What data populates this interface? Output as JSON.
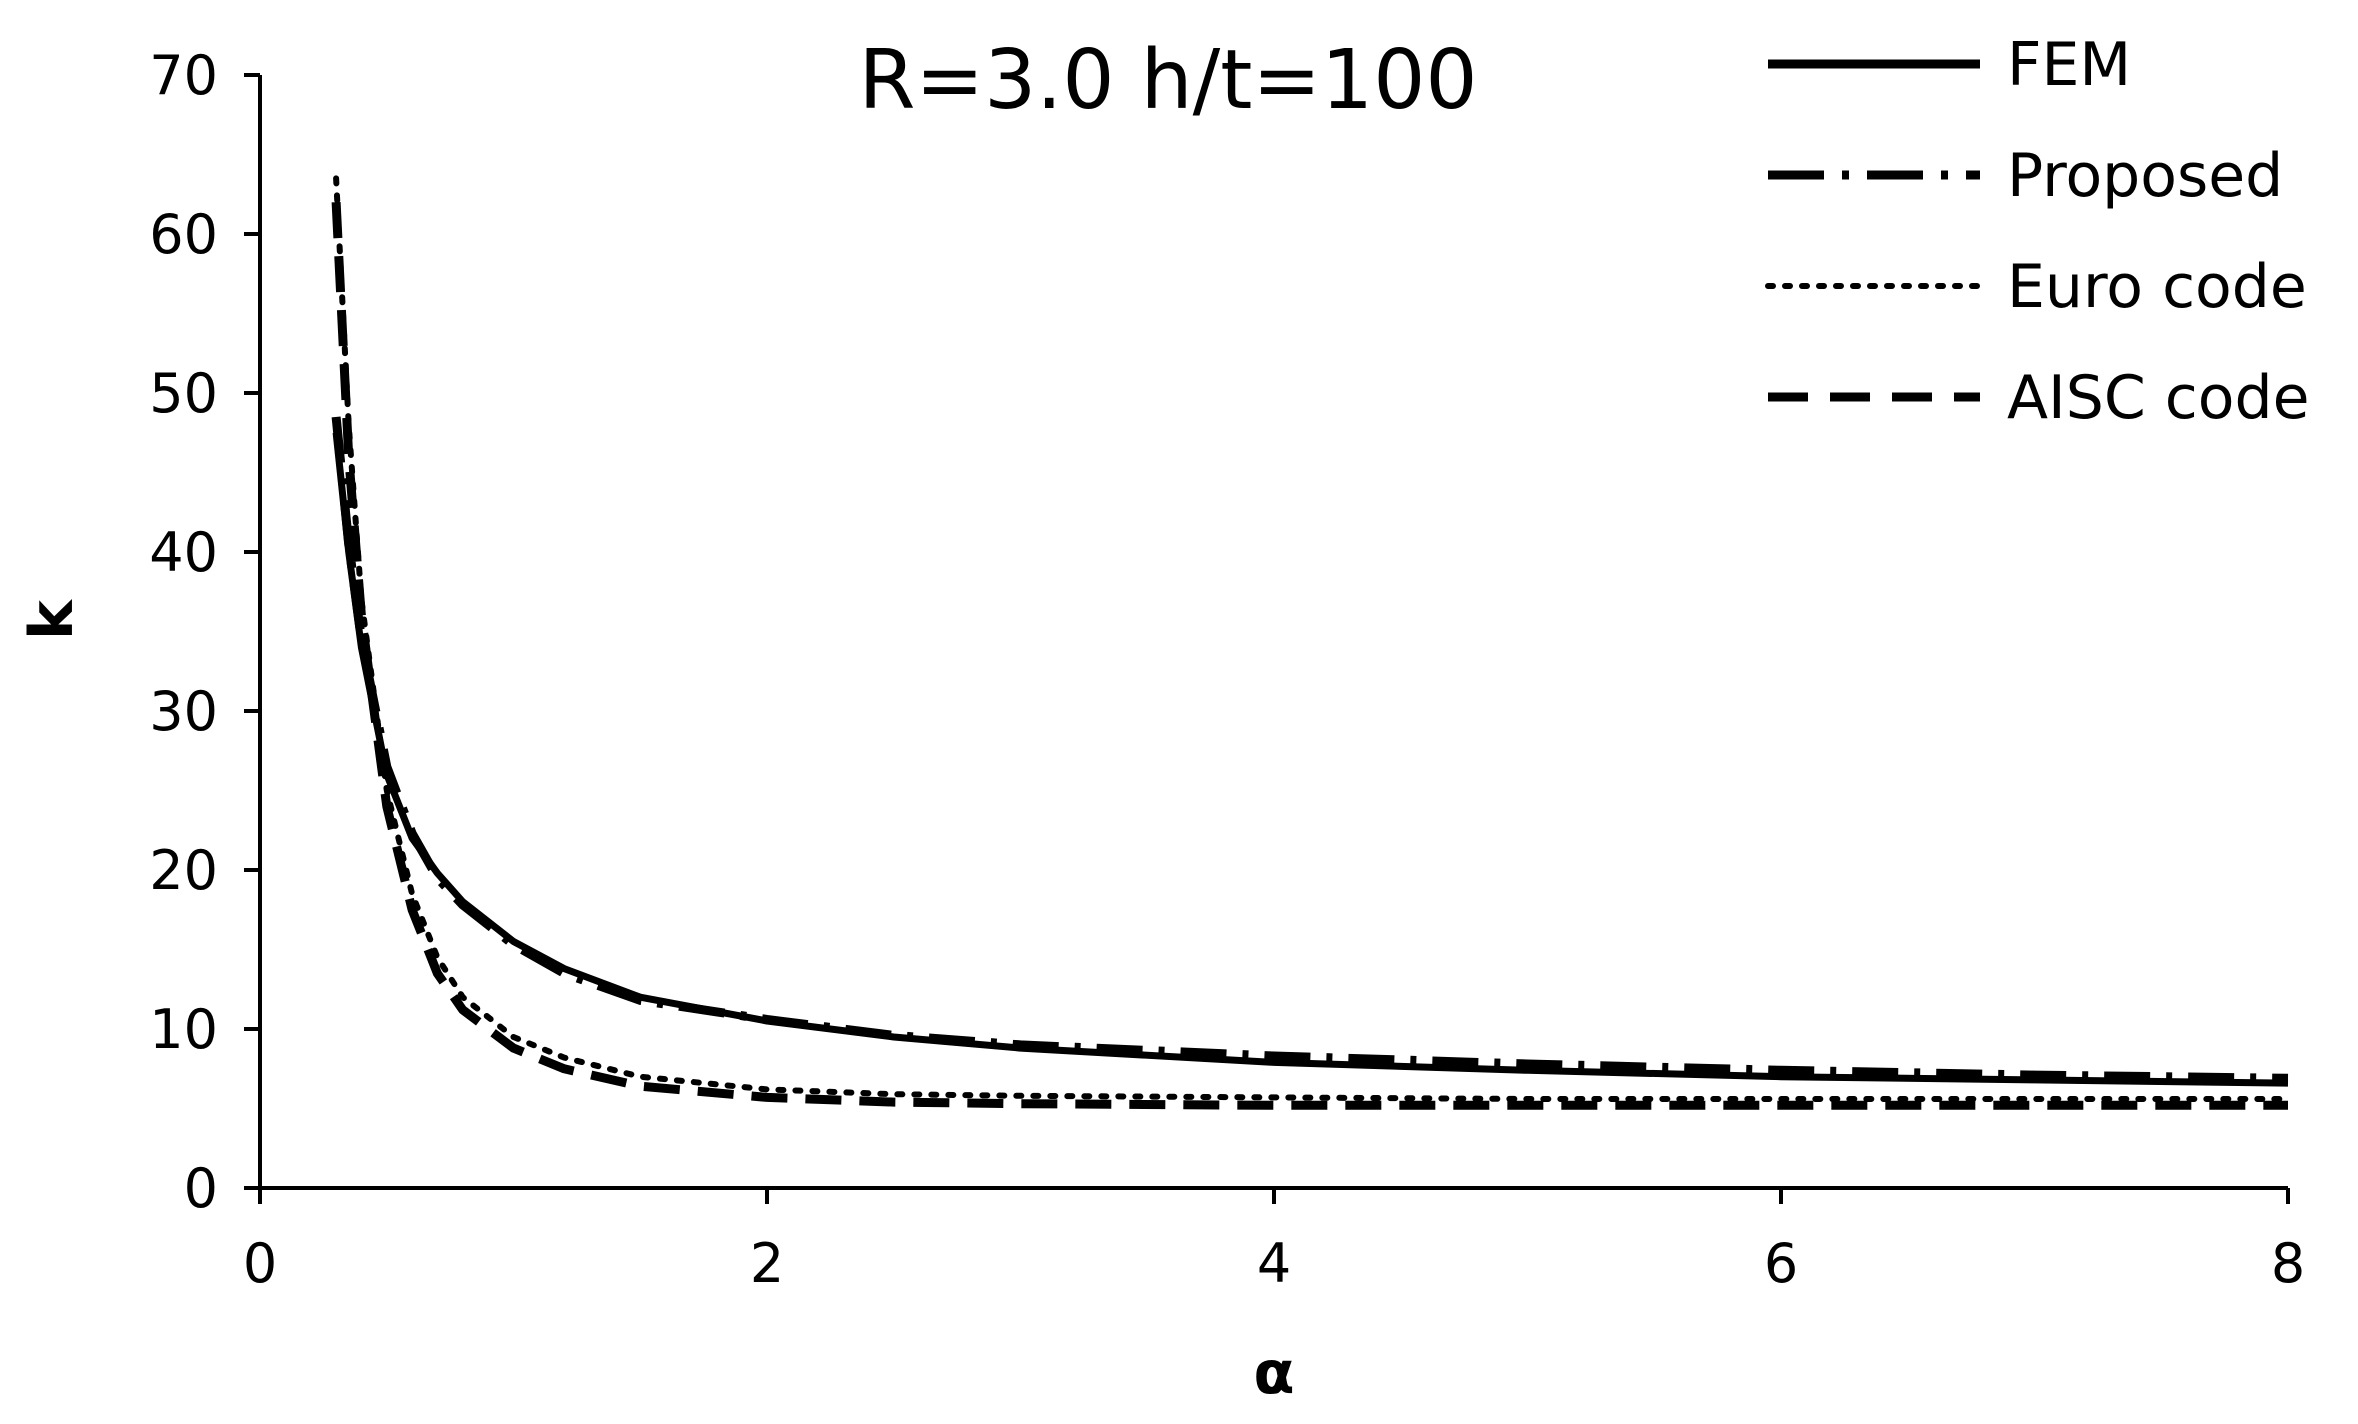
{
  "chart_data": {
    "type": "line",
    "title": "R=3.0 h/t=100",
    "xlabel": "α",
    "ylabel": "k",
    "xlim": [
      0,
      8
    ],
    "ylim": [
      0,
      70
    ],
    "x_ticks": [
      "0",
      "2",
      "4",
      "6",
      "8"
    ],
    "y_ticks": [
      "0",
      "10",
      "20",
      "30",
      "40",
      "50",
      "60",
      "70"
    ],
    "grid": false,
    "legend_position": "top-right",
    "series": [
      {
        "name": "FEM",
        "style": "solid",
        "x": [
          0.3,
          0.35,
          0.4,
          0.5,
          0.6,
          0.7,
          0.8,
          1.0,
          1.2,
          1.5,
          2.0,
          2.5,
          3.0,
          4.0,
          5.0,
          6.0,
          7.0,
          8.0
        ],
        "y": [
          47.5,
          40,
          34,
          26,
          22,
          19.8,
          18,
          15.5,
          13.8,
          12,
          10.5,
          9.5,
          8.8,
          7.9,
          7.4,
          7.0,
          6.8,
          6.6
        ]
      },
      {
        "name": "Proposed",
        "style": "dash-dot",
        "x": [
          0.3,
          0.35,
          0.4,
          0.5,
          0.6,
          0.7,
          0.8,
          1.0,
          1.2,
          1.5,
          2.0,
          2.5,
          3.0,
          4.0,
          5.0,
          6.0,
          7.0,
          8.0
        ],
        "y": [
          48.5,
          40.5,
          34.5,
          26.5,
          22.3,
          19.5,
          17.8,
          15.3,
          13.5,
          11.8,
          10.6,
          9.6,
          9.0,
          8.3,
          7.8,
          7.4,
          7.1,
          6.9
        ]
      },
      {
        "name": "Euro code",
        "style": "dotted",
        "x": [
          0.3,
          0.35,
          0.4,
          0.5,
          0.6,
          0.7,
          0.8,
          1.0,
          1.2,
          1.5,
          2.0,
          2.5,
          3.0,
          4.0,
          5.0,
          6.0,
          7.0,
          8.0
        ],
        "y": [
          63.5,
          48,
          37,
          25,
          18.5,
          14.5,
          12,
          9.5,
          8.2,
          7.0,
          6.2,
          5.9,
          5.8,
          5.7,
          5.6,
          5.6,
          5.6,
          5.6
        ]
      },
      {
        "name": "AISC code",
        "style": "dashed",
        "x": [
          0.3,
          0.35,
          0.4,
          0.5,
          0.6,
          0.7,
          0.8,
          1.0,
          1.2,
          1.5,
          2.0,
          2.5,
          3.0,
          4.0,
          5.0,
          6.0,
          7.0,
          8.0
        ],
        "y": [
          62,
          46,
          36,
          24,
          17.5,
          13.5,
          11.2,
          8.8,
          7.5,
          6.4,
          5.7,
          5.4,
          5.3,
          5.2,
          5.2,
          5.2,
          5.2,
          5.2
        ]
      }
    ]
  }
}
